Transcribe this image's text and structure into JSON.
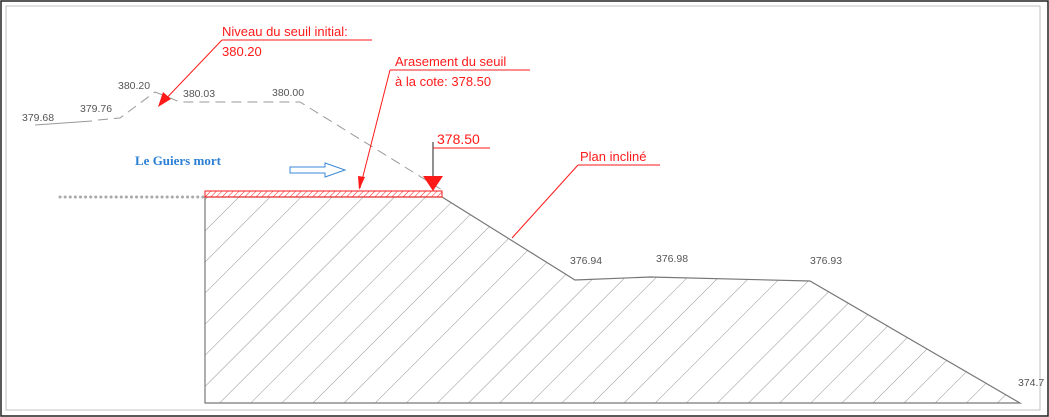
{
  "river": "Le Guiers mort",
  "callouts": [
    {
      "lines": [
        "Niveau du seuil initial:",
        "380.20"
      ]
    },
    {
      "lines": [
        "Arasement du seuil",
        "à la cote: 378.50"
      ]
    },
    {
      "lines": [
        "Plan incliné"
      ]
    }
  ],
  "marker": "378.50",
  "elevations": [
    "379.68",
    "379.76",
    "380.20",
    "380.03",
    "380.00",
    "376.94",
    "376.98",
    "376.93",
    "374.7"
  ]
}
